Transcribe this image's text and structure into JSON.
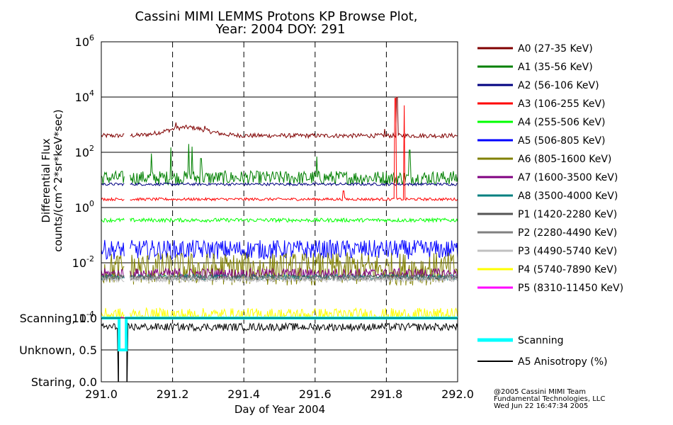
{
  "title_line1": "Cassini MIMI LEMMS Protons KP Browse Plot,",
  "title_line2": "Year: 2004 DOY: 291",
  "credit": {
    "line1": "@2005 Cassini MIMI Team",
    "line2": "Fundamental Technologies, LLC",
    "line3": "Wed Jun 22 16:47:34 2005"
  },
  "chart_data": [
    {
      "type": "line",
      "title": "Cassini MIMI LEMMS Protons KP Browse Plot, Year: 2004 DOY: 291",
      "ylabel_line1": "Differential Flux",
      "ylabel_line2": "counts/(cm^2*sr*keV*sec)",
      "yscale": "log",
      "ylim": [
        0.0001,
        1000000
      ],
      "xlim": [
        291.0,
        292.0
      ],
      "ytick_labels": [
        {
          "base": "10",
          "exp": "-4",
          "value": 0.0001
        },
        {
          "base": "10",
          "exp": "-2",
          "value": 0.01
        },
        {
          "base": "10",
          "exp": "0",
          "value": 1
        },
        {
          "base": "10",
          "exp": "2",
          "value": 100
        },
        {
          "base": "10",
          "exp": "4",
          "value": 10000
        },
        {
          "base": "10",
          "exp": "6",
          "value": 1000000
        }
      ],
      "grid": "dashed vertical at 0.2 day, solid horizontal at each decade",
      "data_gap": [
        291.065,
        291.08
      ],
      "series": [
        {
          "name": "A0 (27-35 KeV)",
          "color": "#800000",
          "baseline": 400,
          "noise": 0.08,
          "spikes": [
            [
              291.21,
              1200
            ],
            [
              291.29,
              900
            ],
            [
              291.795,
              700
            ],
            [
              291.83,
              10000
            ]
          ]
        },
        {
          "name": "A1 (35-56 KeV)",
          "color": "#008000",
          "baseline": 12,
          "noise": 0.25,
          "spikes": [
            [
              291.14,
              90
            ],
            [
              291.195,
              150
            ],
            [
              291.245,
              200
            ],
            [
              291.255,
              160
            ],
            [
              291.28,
              60
            ],
            [
              291.605,
              70
            ],
            [
              291.865,
              120
            ]
          ]
        },
        {
          "name": "A2 (56-106 KeV)",
          "color": "#000080",
          "baseline": 7,
          "noise": 0.05,
          "spikes": []
        },
        {
          "name": "A3 (106-255 KeV)",
          "color": "#ff0000",
          "baseline": 2,
          "noise": 0.05,
          "spikes": [
            [
              291.68,
              4
            ],
            [
              291.825,
              9000
            ],
            [
              291.85,
              5000
            ]
          ]
        },
        {
          "name": "A4 (255-506 KeV)",
          "color": "#00ff00",
          "baseline": 0.35,
          "noise": 0.07,
          "spikes": []
        },
        {
          "name": "A5 (506-805 KeV)",
          "color": "#0000ff",
          "baseline": 0.03,
          "noise": 0.35,
          "spikes": []
        },
        {
          "name": "A6 (805-1600 KeV)",
          "color": "#808000",
          "baseline": 0.006,
          "noise": 0.6,
          "spikes": []
        },
        {
          "name": "A7 (1600-3500 KeV)",
          "color": "#800080",
          "baseline": 0.004,
          "noise": 0.2,
          "spikes": []
        },
        {
          "name": "A8 (3500-4000 KeV)",
          "color": "#008080",
          "baseline": 0.003,
          "noise": 0.1,
          "spikes": []
        },
        {
          "name": "P1 (1420-2280 KeV)",
          "color": "#555555",
          "baseline": 0.003,
          "noise": 0.1,
          "spikes": []
        },
        {
          "name": "P2 (2280-4490 KeV)",
          "color": "#808080",
          "baseline": 0.0028,
          "noise": 0.1,
          "spikes": []
        },
        {
          "name": "P3 (4490-5740 KeV)",
          "color": "#c0c0c0",
          "baseline": 0.0025,
          "noise": 0.1,
          "spikes": []
        },
        {
          "name": "P4 (5740-7890 KeV)",
          "color": "#ffff00",
          "baseline": 0.00013,
          "noise": 0.25,
          "spikes": []
        },
        {
          "name": "P5 (8310-11450 KeV)",
          "color": "#ff00ff",
          "baseline": 0.0001,
          "noise": 0.05,
          "spikes": []
        }
      ]
    },
    {
      "type": "line",
      "ylim": [
        0.0,
        1.0
      ],
      "xlim": [
        291.0,
        292.0
      ],
      "xlabel": "Day of Year 2004",
      "xtick_labels": [
        "291.0",
        "291.2",
        "291.4",
        "291.6",
        "291.8",
        "292.0"
      ],
      "xtick_values": [
        291.0,
        291.2,
        291.4,
        291.6,
        291.8,
        292.0
      ],
      "ytick_labels": [
        {
          "label": "Scanning, 1.0",
          "value": 1.0
        },
        {
          "label": "Unknown, 0.5",
          "value": 0.5
        },
        {
          "label": "Staring, 0.0",
          "value": 0.0
        }
      ],
      "series": [
        {
          "name": "Scanning",
          "color": "#00ffff",
          "values_note": "1.0 except 0.5 between 291.05 and 291.07",
          "dip": [
            291.05,
            291.07,
            0.5
          ]
        },
        {
          "name": "A5 Anisotropy (%)",
          "color": "#000000",
          "baseline": 0.86,
          "noise": 0.06
        }
      ],
      "markers": [
        291.048,
        291.072
      ]
    }
  ]
}
